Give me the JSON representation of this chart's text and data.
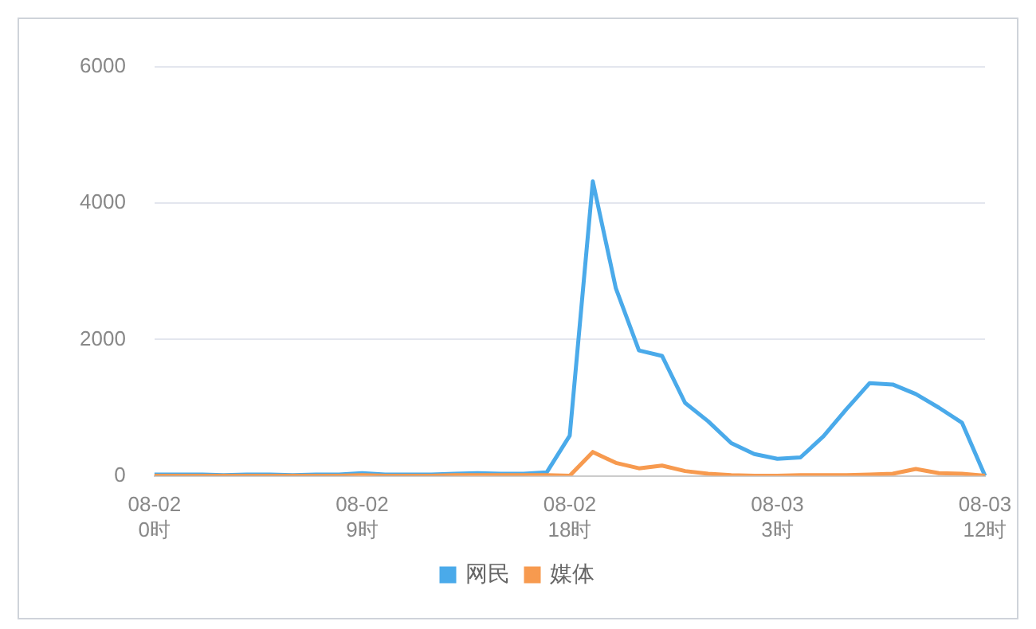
{
  "chart_data": {
    "type": "line",
    "categories": [
      "08-02\n0时",
      null,
      null,
      null,
      null,
      null,
      null,
      null,
      null,
      "08-02\n9时",
      null,
      null,
      null,
      null,
      null,
      null,
      null,
      null,
      "08-02\n18时",
      null,
      null,
      null,
      null,
      null,
      null,
      null,
      null,
      "08-03\n3时",
      null,
      null,
      null,
      null,
      null,
      null,
      null,
      null,
      "08-03\n12时"
    ],
    "series": [
      {
        "name": "网民",
        "color": "#4aaaea",
        "values": [
          20,
          20,
          20,
          10,
          20,
          20,
          10,
          20,
          20,
          40,
          20,
          20,
          20,
          30,
          40,
          30,
          30,
          50,
          590,
          4320,
          2750,
          1840,
          1760,
          1070,
          800,
          480,
          320,
          250,
          270,
          580,
          980,
          1360,
          1340,
          1200,
          1000,
          780,
          0
        ]
      },
      {
        "name": "媒体",
        "color": "#f79a4f",
        "values": [
          0,
          0,
          0,
          0,
          0,
          0,
          0,
          0,
          0,
          10,
          0,
          0,
          0,
          10,
          10,
          10,
          10,
          10,
          0,
          350,
          190,
          110,
          150,
          70,
          30,
          10,
          0,
          0,
          10,
          10,
          10,
          20,
          30,
          100,
          40,
          30,
          0
        ]
      }
    ],
    "ylim": [
      0,
      6000
    ],
    "yticks": [
      0,
      2000,
      4000,
      6000
    ],
    "grid": "y",
    "legend": "bottom",
    "marker": "none",
    "line_style": "solid"
  }
}
